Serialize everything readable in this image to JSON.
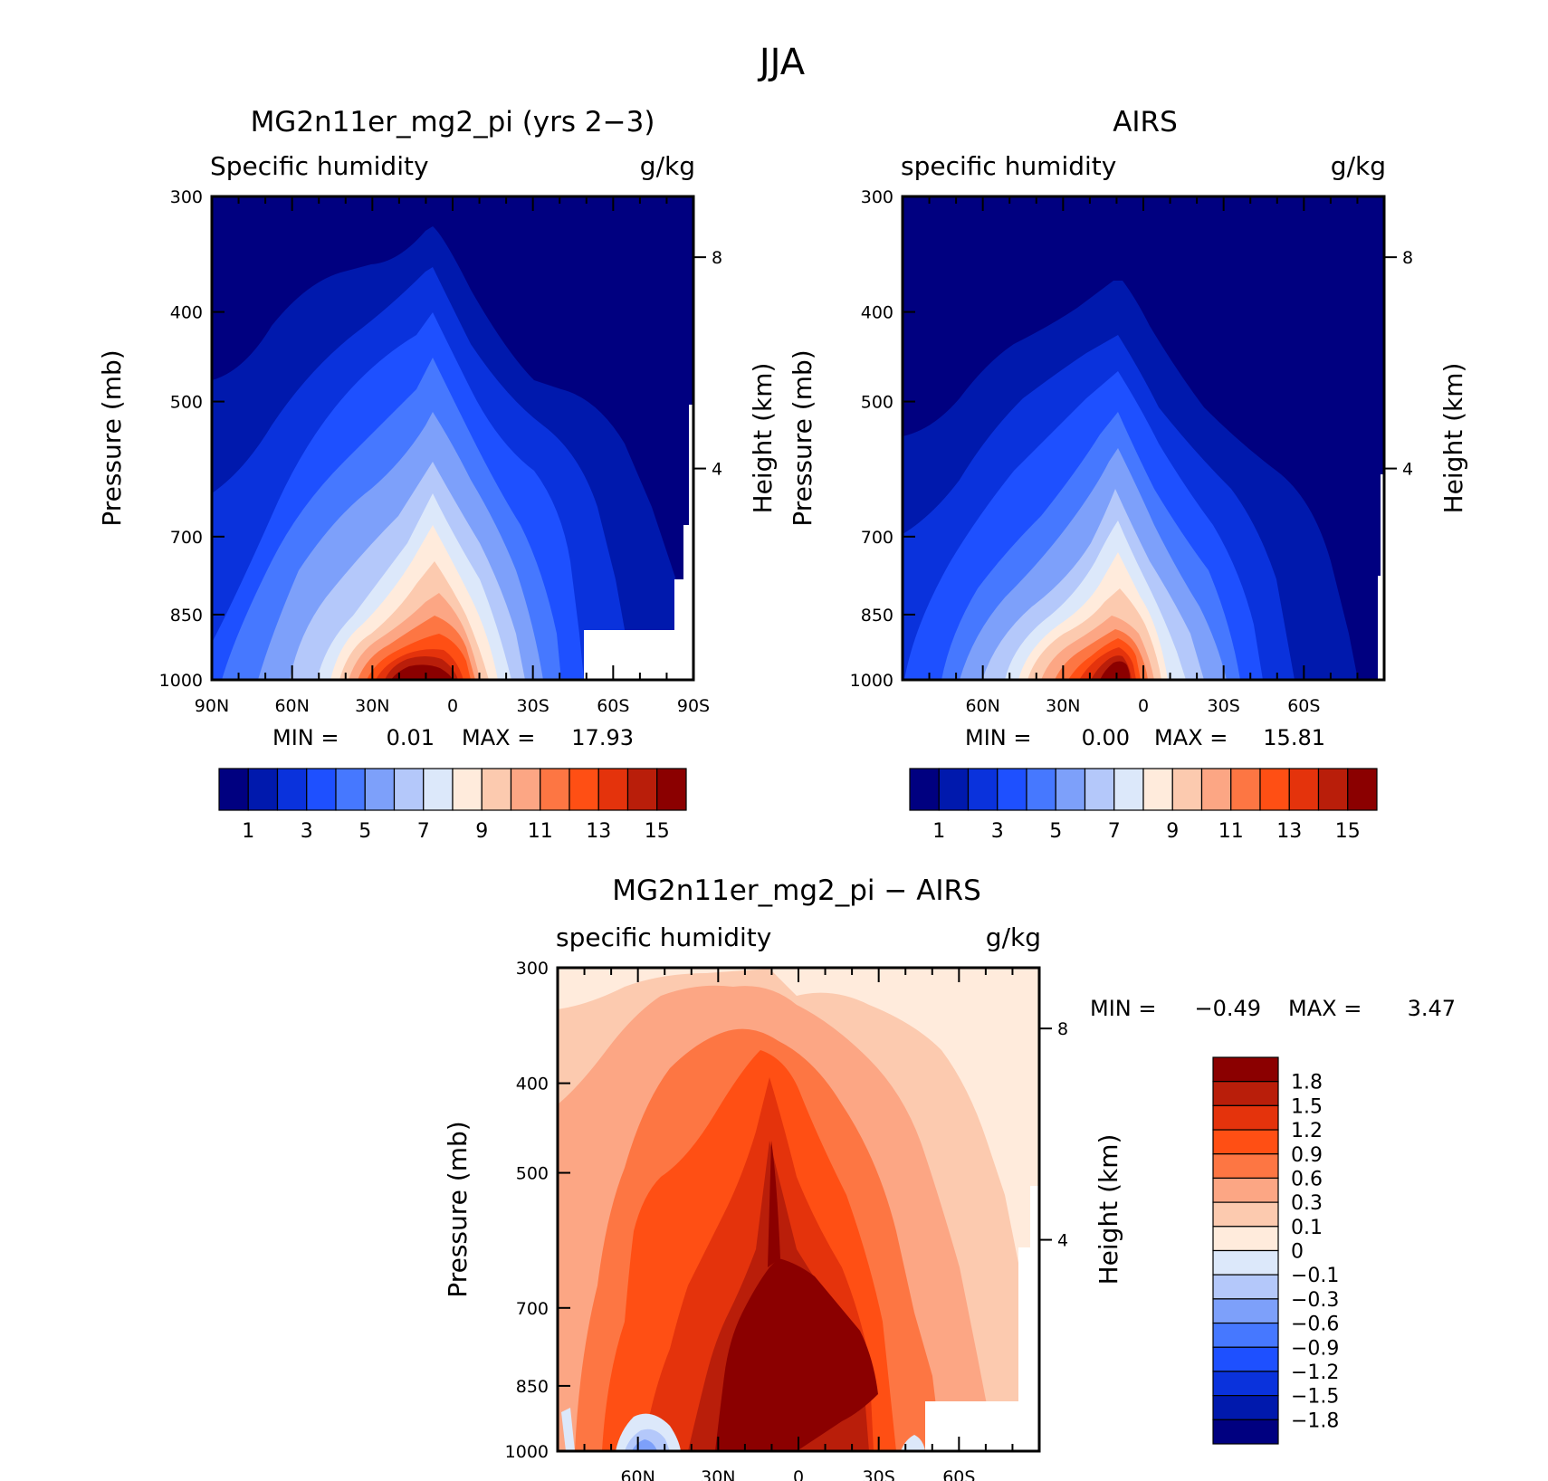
{
  "figure": {
    "title": "JJA"
  },
  "colors": {
    "abs": [
      "#000080",
      "#0019ad",
      "#0a32dc",
      "#1e50ff",
      "#4678ff",
      "#7da0fa",
      "#b4c8fa",
      "#dce8fa",
      "#ffebdc",
      "#fccaaf",
      "#fca684",
      "#fd7643",
      "#ff4f14",
      "#e4330c",
      "#b91e0a",
      "#8b0000"
    ],
    "diff": [
      "#000080",
      "#0019ad",
      "#0a32dc",
      "#1e50ff",
      "#4678ff",
      "#7da0fa",
      "#b4c8fa",
      "#dce8fa",
      "#ffebdc",
      "#fccaaf",
      "#fca684",
      "#fd7643",
      "#ff4f14",
      "#e4330c",
      "#b91e0a",
      "#8b0000"
    ]
  },
  "chart_data": [
    {
      "type": "contour",
      "title": "MG2n11er_mg2_pi (yrs 2−3)",
      "left_label": "Specific humidity",
      "right_label": "g/kg",
      "ylabel": "Pressure (mb)",
      "ylabel_right": "Height (km)",
      "yticks": [
        "300",
        "400",
        "500",
        "700",
        "850",
        "1000"
      ],
      "yticks_right": [
        "8",
        "4"
      ],
      "xticks": [
        "90N",
        "60N",
        "30N",
        "0",
        "30S",
        "60S",
        "90S"
      ],
      "min_label": "MIN =",
      "min_value": "0.01",
      "max_label": "MAX =",
      "max_value": "17.93",
      "colorbar_labels": [
        "1",
        "3",
        "5",
        "7",
        "9",
        "11",
        "13",
        "15"
      ]
    },
    {
      "type": "contour",
      "title": "AIRS",
      "left_label": "specific humidity",
      "right_label": "g/kg",
      "ylabel": "Pressure (mb)",
      "ylabel_right": "Height (km)",
      "yticks": [
        "300",
        "400",
        "500",
        "700",
        "850",
        "1000"
      ],
      "yticks_right": [
        "8",
        "4"
      ],
      "xticks": [
        "60N",
        "30N",
        "0",
        "30S",
        "60S"
      ],
      "min_label": "MIN =",
      "min_value": "0.00",
      "max_label": "MAX =",
      "max_value": "15.81",
      "colorbar_labels": [
        "1",
        "3",
        "5",
        "7",
        "9",
        "11",
        "13",
        "15"
      ]
    },
    {
      "type": "contour",
      "title": "MG2n11er_mg2_pi − AIRS",
      "left_label": "specific humidity",
      "right_label": "g/kg",
      "ylabel": "Pressure (mb)",
      "ylabel_right": "Height (km)",
      "yticks": [
        "300",
        "400",
        "500",
        "700",
        "850",
        "1000"
      ],
      "yticks_right": [
        "8",
        "4"
      ],
      "xticks": [
        "60N",
        "30N",
        "0",
        "30S",
        "60S"
      ],
      "min_label": "MIN =",
      "min_value": "−0.49",
      "max_label": "MAX =",
      "max_value": "3.47",
      "colorbar_labels": [
        "1.8",
        "1.5",
        "1.2",
        "0.9",
        "0.6",
        "0.3",
        "0.1",
        "0",
        "−0.1",
        "−0.3",
        "−0.6",
        "−0.9",
        "−1.2",
        "−1.5",
        "−1.8"
      ]
    }
  ]
}
